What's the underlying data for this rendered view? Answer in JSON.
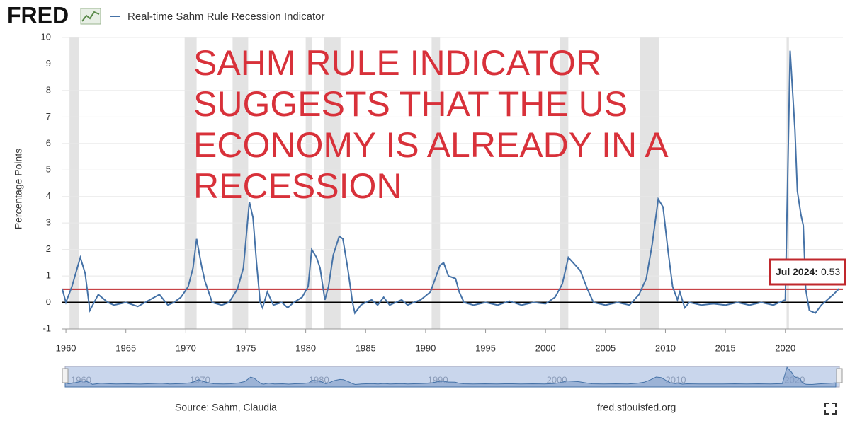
{
  "header": {
    "logo": "FRED"
  },
  "chart_data": {
    "type": "line",
    "annotation": [
      "SAHM RULE INDICATOR",
      "SUGGESTS THAT THE US",
      "ECONOMY IS ALREADY IN A",
      "RECESSION"
    ],
    "y_label": "Percentage Points",
    "xlim": [
      1959.7,
      2024.8
    ],
    "ylim": [
      -1,
      10
    ],
    "xticks": [
      1960,
      1965,
      1970,
      1975,
      1980,
      1985,
      1990,
      1995,
      2000,
      2005,
      2010,
      2015,
      2020
    ],
    "yticks": [
      -1,
      0,
      1,
      2,
      3,
      4,
      5,
      6,
      7,
      8,
      9,
      10
    ],
    "grid": true,
    "recessions": [
      [
        1960.3,
        1961.1
      ],
      [
        1969.9,
        1970.9
      ],
      [
        1973.9,
        1975.2
      ],
      [
        1980.0,
        1980.5
      ],
      [
        1981.5,
        1982.9
      ],
      [
        1990.5,
        1991.2
      ],
      [
        2001.2,
        2001.9
      ],
      [
        2007.9,
        2009.5
      ],
      [
        2020.1,
        2020.3
      ]
    ],
    "reference_lines": [
      {
        "value": 0.5,
        "color": "#c0282d"
      },
      {
        "value": 0,
        "color": "#000000"
      }
    ],
    "series": [
      {
        "name": "Real-time Sahm Rule Recession Indicator",
        "color": "#4572a7",
        "x": [
          1959.7,
          1960.0,
          1960.5,
          1961.2,
          1961.6,
          1962.0,
          1962.7,
          1963.5,
          1964.0,
          1965.0,
          1966.0,
          1967.0,
          1967.8,
          1968.5,
          1969.0,
          1969.6,
          1970.2,
          1970.6,
          1970.9,
          1971.3,
          1971.6,
          1972.2,
          1973.0,
          1973.6,
          1974.3,
          1974.8,
          1975.3,
          1975.6,
          1975.9,
          1976.2,
          1976.4,
          1976.8,
          1977.3,
          1978.0,
          1978.5,
          1979.0,
          1979.7,
          1980.2,
          1980.5,
          1980.9,
          1981.2,
          1981.6,
          1981.9,
          1982.3,
          1982.8,
          1983.1,
          1983.5,
          1983.9,
          1984.1,
          1984.6,
          1985.0,
          1985.5,
          1986.0,
          1986.5,
          1987.0,
          1988.0,
          1988.5,
          1989.0,
          1989.6,
          1990.4,
          1990.8,
          1991.2,
          1991.5,
          1991.9,
          1992.5,
          1992.8,
          1993.2,
          1994.0,
          1995.0,
          1996.0,
          1997.0,
          1998.0,
          1999.0,
          2000.0,
          2000.8,
          2001.4,
          2001.9,
          2002.5,
          2002.9,
          2003.5,
          2004.0,
          2005.0,
          2006.0,
          2007.0,
          2007.8,
          2008.4,
          2008.9,
          2009.4,
          2009.8,
          2010.2,
          2010.6,
          2011.0,
          2011.2,
          2011.6,
          2012.0,
          2013.0,
          2014.0,
          2015.0,
          2016.0,
          2017.0,
          2018.0,
          2019.0,
          2020.0,
          2020.4,
          2020.8,
          2021.0,
          2021.3,
          2021.5,
          2021.7,
          2022.0,
          2022.5,
          2023.0,
          2023.5,
          2024.0,
          2024.5
        ],
        "values": [
          0.5,
          0.0,
          0.6,
          1.7,
          1.1,
          -0.3,
          0.3,
          0.0,
          -0.1,
          0.0,
          -0.15,
          0.1,
          0.3,
          -0.1,
          0.0,
          0.2,
          0.6,
          1.3,
          2.4,
          1.4,
          0.8,
          0.0,
          -0.1,
          0.0,
          0.5,
          1.3,
          3.8,
          3.2,
          1.5,
          0.0,
          -0.2,
          0.4,
          -0.1,
          0.0,
          -0.2,
          0.0,
          0.2,
          0.6,
          2.0,
          1.7,
          1.3,
          0.1,
          0.6,
          1.8,
          2.5,
          2.4,
          1.3,
          0.0,
          -0.4,
          -0.1,
          0.0,
          0.1,
          -0.1,
          0.2,
          -0.1,
          0.1,
          -0.1,
          0.0,
          0.1,
          0.4,
          0.9,
          1.4,
          1.5,
          1.0,
          0.9,
          0.4,
          0.0,
          -0.1,
          0.0,
          -0.1,
          0.05,
          -0.1,
          0.0,
          -0.05,
          0.2,
          0.7,
          1.7,
          1.4,
          1.2,
          0.5,
          0.0,
          -0.1,
          0.0,
          -0.1,
          0.3,
          0.9,
          2.2,
          3.9,
          3.6,
          2.0,
          0.6,
          0.1,
          0.4,
          -0.2,
          0.0,
          -0.1,
          -0.05,
          -0.1,
          0.0,
          -0.1,
          0.0,
          -0.1,
          0.1,
          9.5,
          6.5,
          4.2,
          3.3,
          2.9,
          0.5,
          -0.3,
          -0.4,
          -0.1,
          0.1,
          0.3,
          0.53
        ]
      }
    ],
    "tooltip": {
      "label": "Jul 2024:"
    },
    "navigator_ticks": [
      1960,
      1970,
      1980,
      1990,
      2000,
      2010,
      2020
    ]
  },
  "footer": {
    "source": "Source: Sahm, Claudia",
    "site": "fred.stlouisfed.org"
  }
}
